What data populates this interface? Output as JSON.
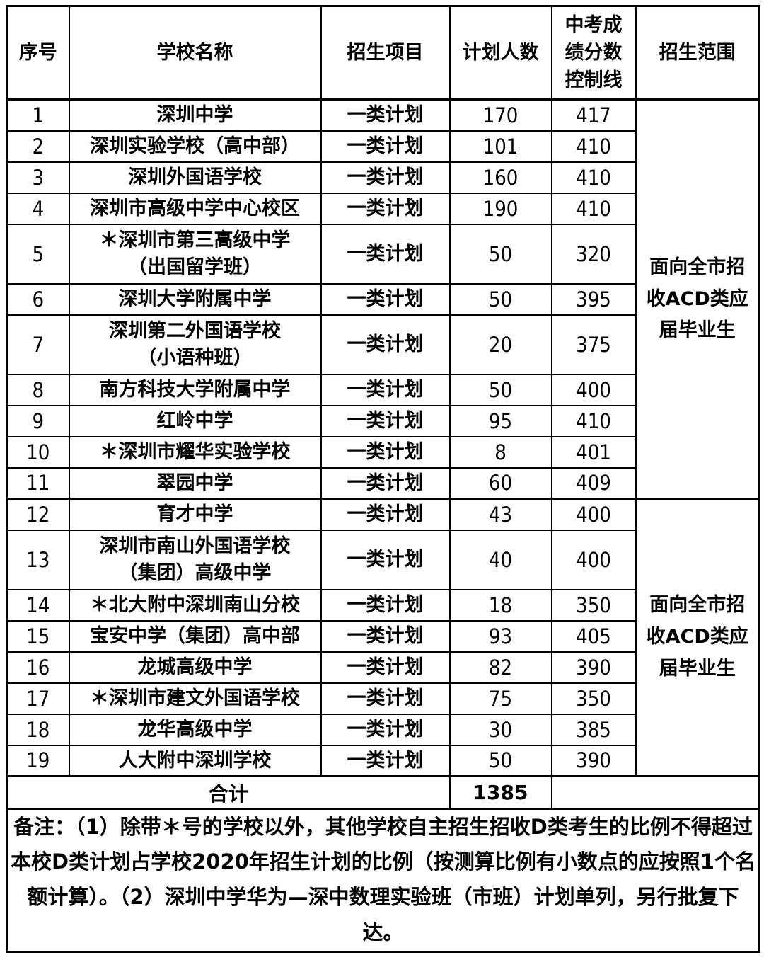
{
  "table": {
    "headers": {
      "col_serial": "序号",
      "col_school": "学校名称",
      "col_program": "招生项目",
      "col_planned": "计划人数",
      "col_score_lines": [
        "中考成",
        "绩分数",
        "控制线"
      ],
      "col_scope": "招生范围"
    },
    "rows": [
      {
        "no": "1",
        "school": "深圳中学",
        "program": "一类计划",
        "planned": "170",
        "score": "417"
      },
      {
        "no": "2",
        "school": "深圳实验学校（高中部）",
        "program": "一类计划",
        "planned": "101",
        "score": "410"
      },
      {
        "no": "3",
        "school": "深圳外国语学校",
        "program": "一类计划",
        "planned": "160",
        "score": "410",
        "marker": true
      },
      {
        "no": "4",
        "school": "深圳市高级中学中心校区",
        "program": "一类计划",
        "planned": "190",
        "score": "410"
      },
      {
        "no": "5",
        "school_lines": [
          "＊深圳市第三高级中学",
          "（出国留学班）"
        ],
        "program": "一类计划",
        "planned": "50",
        "score": "320"
      },
      {
        "no": "6",
        "school": "深圳大学附属中学",
        "program": "一类计划",
        "planned": "50",
        "score": "395"
      },
      {
        "no": "7",
        "school_lines": [
          "深圳第二外国语学校",
          "（小语种班）"
        ],
        "program": "一类计划",
        "planned": "20",
        "score": "375"
      },
      {
        "no": "8",
        "school": "南方科技大学附属中学",
        "program": "一类计划",
        "planned": "50",
        "score": "400"
      },
      {
        "no": "9",
        "school": "红岭中学",
        "program": "一类计划",
        "planned": "95",
        "score": "410"
      },
      {
        "no": "10",
        "school": "＊深圳市耀华实验学校",
        "program": "一类计划",
        "planned": "8",
        "score": "401"
      },
      {
        "no": "11",
        "school": "翠园中学",
        "program": "一类计划",
        "planned": "60",
        "score": "409"
      },
      {
        "no": "12",
        "school": "育才中学",
        "program": "一类计划",
        "planned": "43",
        "score": "400"
      },
      {
        "no": "13",
        "school_lines": [
          "深圳市南山外国语学校",
          "（集团）高级中学"
        ],
        "program": "一类计划",
        "planned": "40",
        "score": "400"
      },
      {
        "no": "14",
        "school": "＊北大附中深圳南山分校",
        "program": "一类计划",
        "planned": "18",
        "score": "350"
      },
      {
        "no": "15",
        "school": "宝安中学（集团）高中部",
        "program": "一类计划",
        "planned": "93",
        "score": "405"
      },
      {
        "no": "16",
        "school": "龙城高级中学",
        "program": "一类计划",
        "planned": "82",
        "score": "390"
      },
      {
        "no": "17",
        "school": "＊深圳市建文外国语学校",
        "program": "一类计划",
        "planned": "75",
        "score": "350"
      },
      {
        "no": "18",
        "school": "龙华高级中学",
        "program": "一类计划",
        "planned": "30",
        "score": "385"
      },
      {
        "no": "19",
        "school": "人大附中深圳学校",
        "program": "一类计划",
        "planned": "50",
        "score": "390"
      }
    ],
    "scope_groups": [
      {
        "start_row": "1",
        "row_span": 11,
        "lines": [
          "面向全市招",
          "收ACD类应",
          "届毕业生"
        ]
      },
      {
        "start_row": "12",
        "row_span": 8,
        "lines": [
          "面向全市招",
          "收ACD类应",
          "届毕业生"
        ]
      }
    ],
    "total": {
      "label": "合计",
      "planned": "1385"
    },
    "notes": "备注：（1）除带＊号的学校以外，其他学校自主招生招收D类考生的比例不得超过本校D类计划占学校2020年招生计划的比例（按测算比例有小数点的应按照1个名额计算）。（2）深圳中学华为—深中数理实验班（市班）计划单列，另行批复下达。"
  },
  "colors": {
    "border": "#000000",
    "text": "#000000",
    "background": "#ffffff",
    "marker_green": "#00a33c"
  }
}
